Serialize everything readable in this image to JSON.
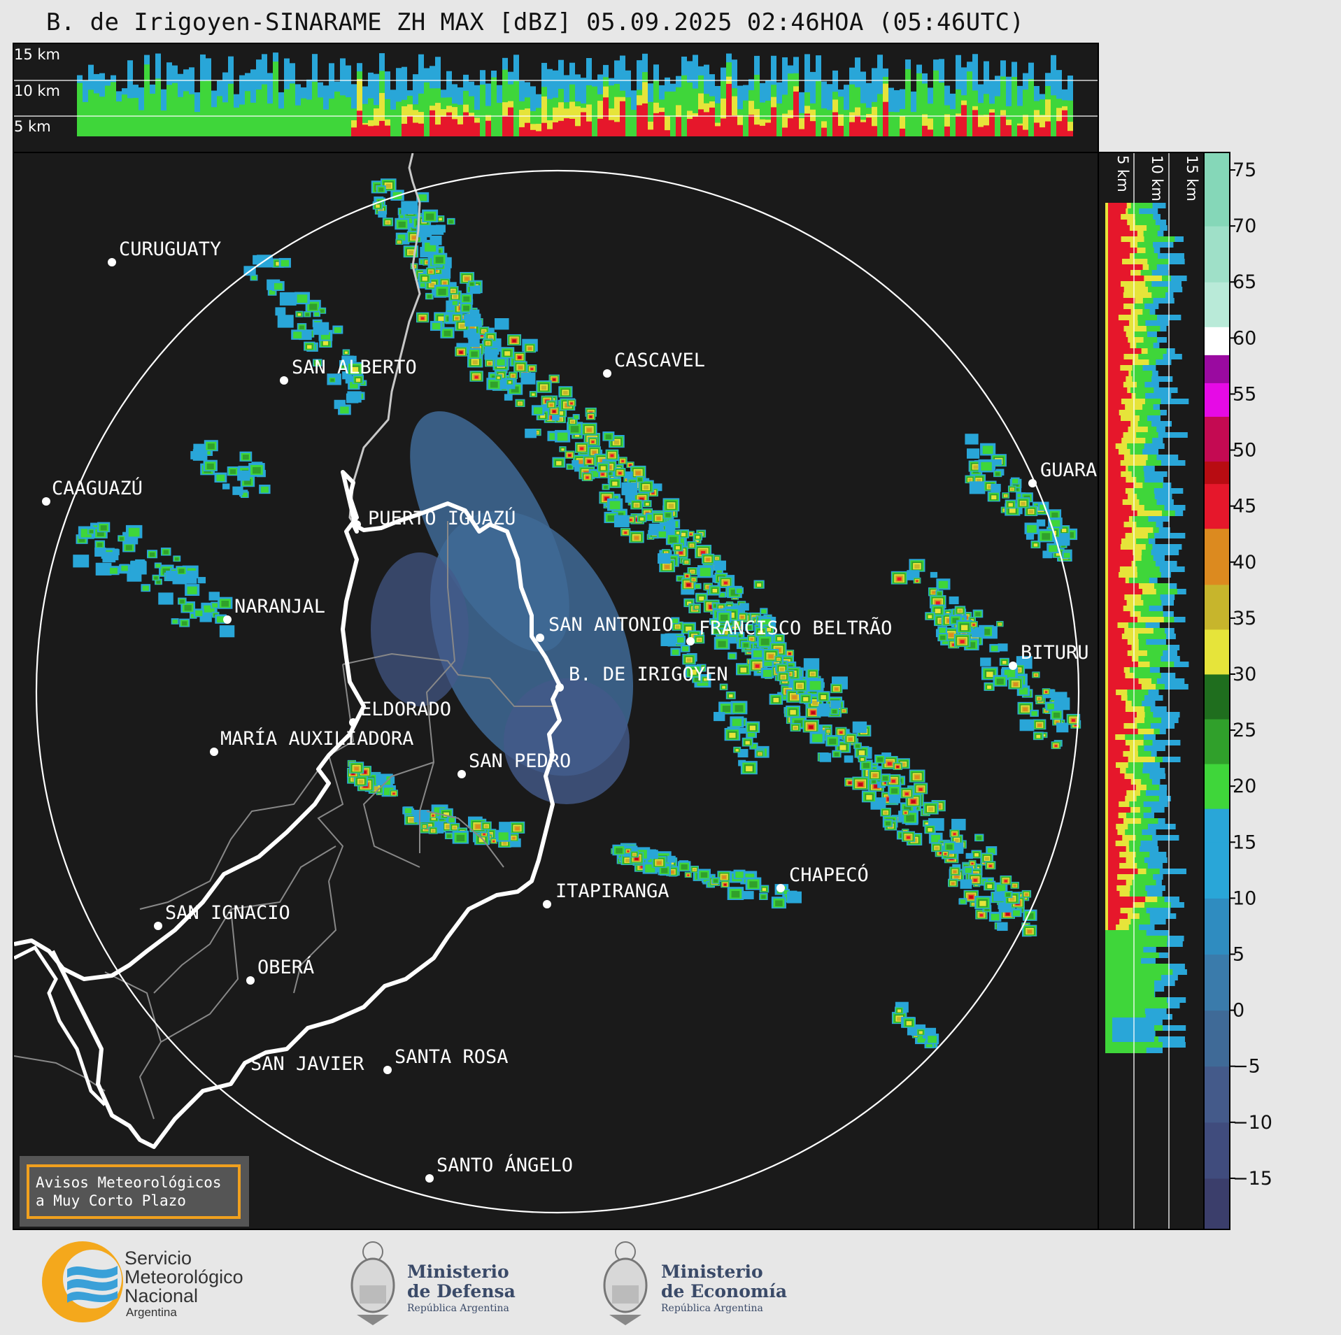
{
  "title": "B. de Irigoyen-SINARAME ZH MAX [dBZ] 05.09.2025 02:46HOA (05:46UTC)",
  "top_panel": {
    "height_labels": [
      "15 km",
      "10 km",
      "5 km"
    ]
  },
  "right_panel": {
    "height_labels": [
      "5 km",
      "10 km",
      "15 km"
    ]
  },
  "colorbar": {
    "ticks": [
      "75",
      "70",
      "65",
      "60",
      "55",
      "50",
      "45",
      "40",
      "35",
      "30",
      "25",
      "20",
      "15",
      "10",
      "5",
      "0",
      "−5",
      "−10",
      "−15"
    ],
    "colors": {
      "c_m15": "#3b3e6b",
      "c_m10": "#404c7d",
      "c_m5": "#445a8a",
      "c_0": "#3f6a97",
      "c_5": "#3a7bab",
      "c_10": "#2f8cc0",
      "c_15": "#29a6d8",
      "c_20": "#3fd63a",
      "c_25": "#30a02b",
      "c_30": "#1f6e1e",
      "c_35": "#e6e43a",
      "c_38": "#c7b52c",
      "c_40": "#dc8a1f",
      "c_45": "#e6172b",
      "c_48": "#b80c12",
      "c_50": "#c40a52",
      "c_55": "#e60ae6",
      "c_58": "#9a0aa0",
      "c_60": "#ffffff",
      "c_65": "#b9ead8",
      "c_70": "#9fe0c8",
      "c_75": "#85d7b8"
    }
  },
  "map": {
    "cities": [
      {
        "name": "CURUGUATY"
      },
      {
        "name": "SAN ALBERTO"
      },
      {
        "name": "CASCAVEL"
      },
      {
        "name": "CAAGUAZÚ"
      },
      {
        "name": "PUERTO IGUAZÚ"
      },
      {
        "name": "GUARA"
      },
      {
        "name": "NARANJAL"
      },
      {
        "name": "SAN ANTONIO"
      },
      {
        "name": "FRANCISCO BELTRÃO"
      },
      {
        "name": "BITURU"
      },
      {
        "name": "B. DE IRIGOYEN"
      },
      {
        "name": "ELDORADO"
      },
      {
        "name": "MARÍA AUXILIADORA"
      },
      {
        "name": "SAN PEDRO"
      },
      {
        "name": "ITAPIRANGA"
      },
      {
        "name": "CHAPECÓ"
      },
      {
        "name": "SAN IGNACIO"
      },
      {
        "name": "OBERÁ"
      },
      {
        "name": "SAN JAVIER"
      },
      {
        "name": "SANTA ROSA"
      },
      {
        "name": "SANTO ÁNGELO"
      }
    ]
  },
  "warning_box": {
    "line1": "Avisos Meteorológicos",
    "line2": "a Muy Corto Plazo"
  },
  "logos": {
    "smn": [
      "Servicio",
      "Meteorológico",
      "Nacional",
      "Argentina"
    ],
    "defensa": [
      "Ministerio",
      "de Defensa",
      "República Argentina"
    ],
    "economia": [
      "Ministerio",
      "de Economía",
      "República Argentina"
    ]
  }
}
